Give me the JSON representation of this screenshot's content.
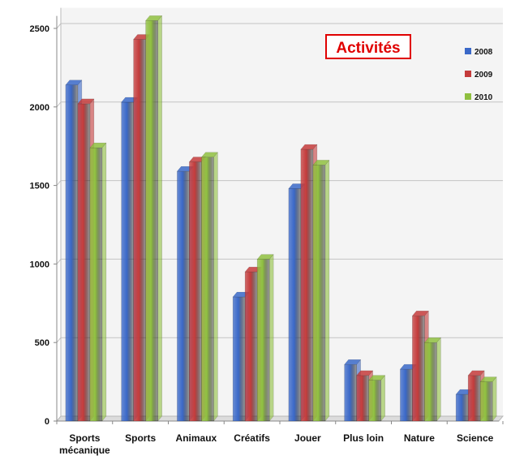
{
  "chart_data": {
    "type": "bar",
    "title": "Activités",
    "xlabel": "",
    "ylabel": "",
    "categories": [
      "Sports mécanique",
      "Sports",
      "Animaux",
      "Créatifs",
      "Jouer",
      "Plus loin",
      "Nature",
      "Science"
    ],
    "series": [
      {
        "name": "2008",
        "color": "#3a68c8",
        "values": [
          2140,
          2030,
          1590,
          790,
          1480,
          360,
          330,
          170
        ]
      },
      {
        "name": "2009",
        "color": "#c43b3b",
        "values": [
          2020,
          2430,
          1650,
          950,
          1730,
          290,
          670,
          290
        ]
      },
      {
        "name": "2010",
        "color": "#8fbf3f",
        "values": [
          1740,
          2550,
          1680,
          1030,
          1630,
          260,
          500,
          250
        ]
      }
    ],
    "ylim": [
      0,
      2600
    ],
    "yticks": [
      0,
      500,
      1000,
      1500,
      2000,
      2500
    ],
    "grid": true,
    "legend_position": "top-right"
  }
}
